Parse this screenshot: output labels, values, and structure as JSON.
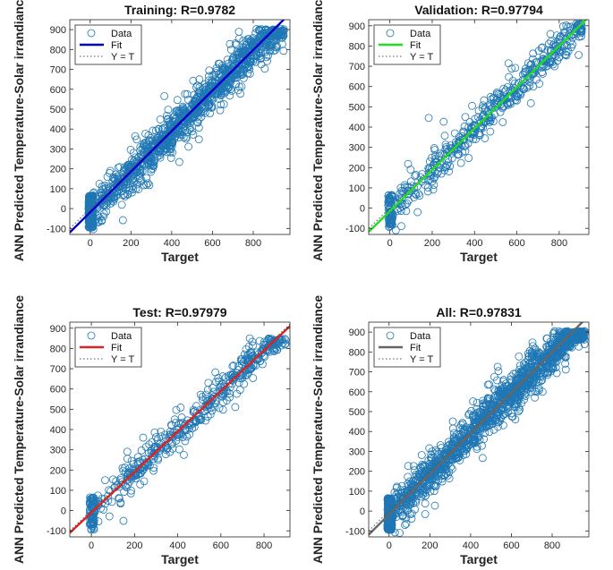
{
  "colors": {
    "data_marker": "#1f77b4",
    "yeqt_line": "#555555",
    "axis": "#262626"
  },
  "chart_data": [
    {
      "id": "training",
      "type": "scatter",
      "title": "Training: R=0.9782",
      "xlabel": "Target",
      "ylabel": "ANN Predicted Temperature-Solar irrandiance",
      "xlim": [
        -100,
        980
      ],
      "ylim": [
        -130,
        950
      ],
      "xticks": [
        0,
        200,
        400,
        600,
        800
      ],
      "xtick_labels": [
        "0",
        "200",
        "400",
        "600",
        "800"
      ],
      "yticks": [
        -100,
        0,
        100,
        200,
        300,
        400,
        500,
        600,
        700,
        800,
        900
      ],
      "ytick_labels": [
        "-100",
        "0",
        "100",
        "200",
        "300",
        "400",
        "500",
        "600",
        "700",
        "800",
        "900"
      ],
      "fit": {
        "slope": 1.02,
        "intercept": -18,
        "color": "#0000cc"
      },
      "legend": [
        "Data",
        "Fit",
        "Y = T"
      ],
      "data_points": {
        "n": 1400,
        "zero_cluster": 260,
        "x_max": 950,
        "noise": 60,
        "y_max": 905
      }
    },
    {
      "id": "validation",
      "type": "scatter",
      "title": "Validation: R=0.97794",
      "xlabel": "Target",
      "ylabel": "ANN Predicted Temperature-Solar irrandiance",
      "xlim": [
        -100,
        940
      ],
      "ylim": [
        -130,
        930
      ],
      "xticks": [
        0,
        200,
        400,
        600,
        800
      ],
      "xtick_labels": [
        "0",
        "200",
        "400",
        "600",
        "800"
      ],
      "yticks": [
        -100,
        0,
        100,
        200,
        300,
        400,
        500,
        600,
        700,
        800,
        900
      ],
      "ytick_labels": [
        "-100",
        "0",
        "100",
        "200",
        "300",
        "400",
        "500",
        "600",
        "700",
        "800",
        "900"
      ],
      "fit": {
        "slope": 1.02,
        "intercept": -15,
        "color": "#22dd22"
      },
      "legend": [
        "Data",
        "Fit",
        "Y = T"
      ],
      "data_points": {
        "n": 520,
        "zero_cluster": 70,
        "x_max": 910,
        "noise": 55,
        "y_max": 910
      }
    },
    {
      "id": "test",
      "type": "scatter",
      "title": "Test: R=0.97979",
      "xlabel": "Target",
      "ylabel": "ANN Predicted Temperature-Solar irrandiance",
      "xlim": [
        -100,
        920
      ],
      "ylim": [
        -130,
        930
      ],
      "xticks": [
        0,
        200,
        400,
        600,
        800
      ],
      "xtick_labels": [
        "0",
        "200",
        "400",
        "600",
        "800"
      ],
      "yticks": [
        -100,
        0,
        100,
        200,
        300,
        400,
        500,
        600,
        700,
        800,
        900
      ],
      "ytick_labels": [
        "-100",
        "0",
        "100",
        "200",
        "300",
        "400",
        "500",
        "600",
        "700",
        "800",
        "900"
      ],
      "fit": {
        "slope": 1.0,
        "intercept": -10,
        "color": "#dd2222"
      },
      "legend": [
        "Data",
        "Fit",
        "Y = T"
      ],
      "data_points": {
        "n": 520,
        "zero_cluster": 70,
        "x_max": 900,
        "noise": 50,
        "y_max": 850
      }
    },
    {
      "id": "all",
      "type": "scatter",
      "title": "All: R=0.97831",
      "xlabel": "Target",
      "ylabel": "ANN Predicted Temperature-Solar irrandiance",
      "xlim": [
        -100,
        980
      ],
      "ylim": [
        -130,
        950
      ],
      "xticks": [
        0,
        200,
        400,
        600,
        800
      ],
      "xtick_labels": [
        "0",
        "200",
        "400",
        "600",
        "800"
      ],
      "yticks": [
        -100,
        0,
        100,
        200,
        300,
        400,
        500,
        600,
        700,
        800,
        900
      ],
      "ytick_labels": [
        "-100",
        "0",
        "100",
        "200",
        "300",
        "400",
        "500",
        "600",
        "700",
        "800",
        "900"
      ],
      "fit": {
        "slope": 1.02,
        "intercept": -17,
        "color": "#666666"
      },
      "legend": [
        "Data",
        "Fit",
        "Y = T"
      ],
      "data_points": {
        "n": 1700,
        "zero_cluster": 320,
        "x_max": 960,
        "noise": 60,
        "y_max": 905
      }
    }
  ]
}
